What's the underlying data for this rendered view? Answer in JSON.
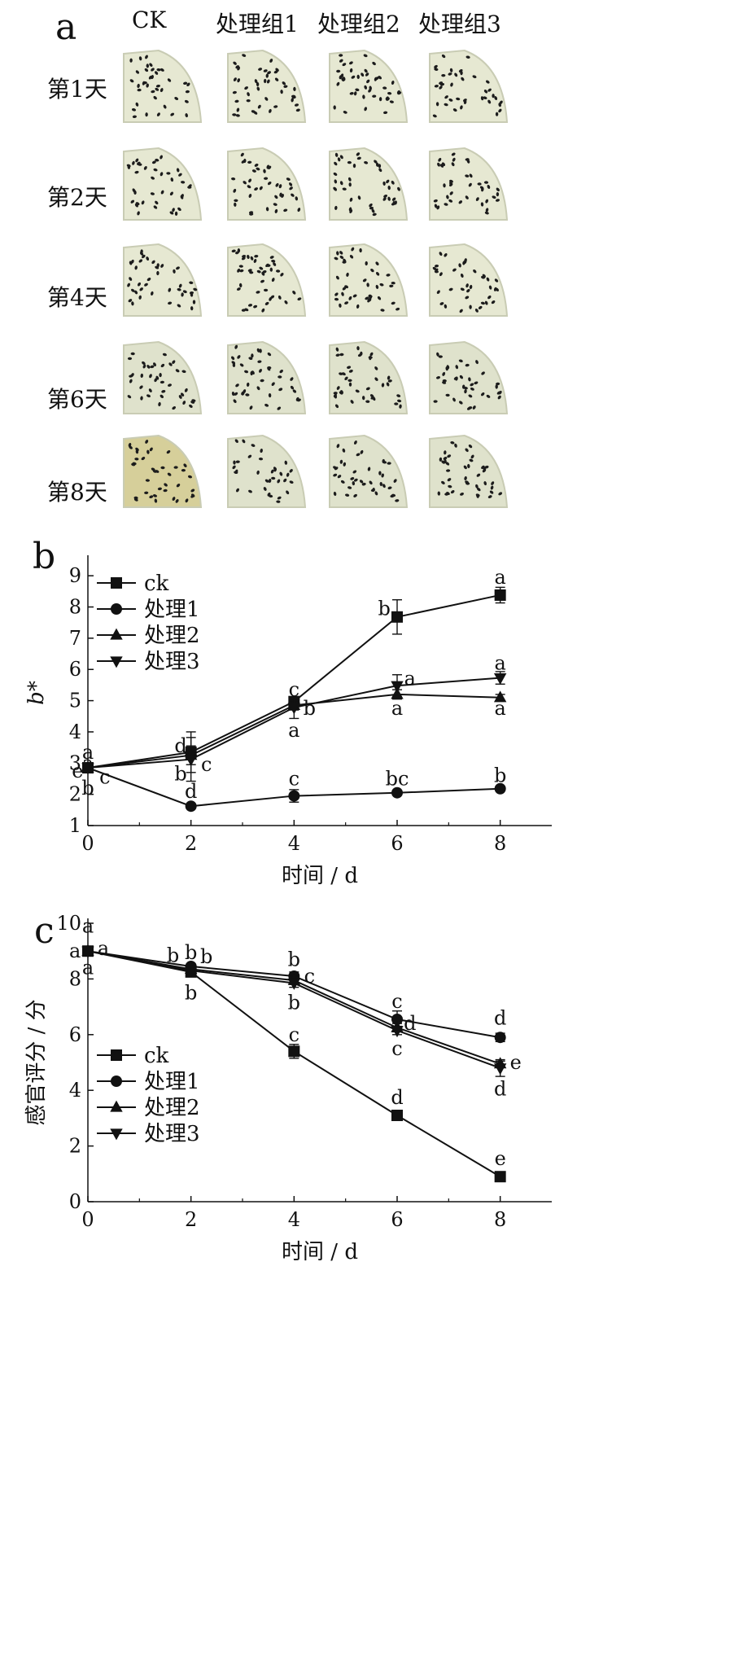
{
  "panel_a": {
    "label": "a",
    "columns": [
      "CK",
      "处理组1",
      "处理组2",
      "处理组3"
    ],
    "rows": [
      "第1天",
      "第2天",
      "第4天",
      "第6天",
      "第8天"
    ]
  },
  "chart_data": [
    {
      "panel": "b",
      "type": "line",
      "xlabel": "时间 / d",
      "ylabel": "b*",
      "x": [
        0,
        2,
        4,
        6,
        8
      ],
      "xlim": [
        0,
        9
      ],
      "ylim": [
        1,
        9.5
      ],
      "xticks": [
        0,
        2,
        4,
        6,
        8
      ],
      "yticks": [
        1,
        2,
        3,
        4,
        5,
        6,
        7,
        8,
        9
      ],
      "legend_position": "top-left",
      "series": [
        {
          "name": "ck",
          "marker": "square",
          "values": [
            2.85,
            3.35,
            4.97,
            7.68,
            8.38
          ],
          "errors": [
            0.1,
            0.65,
            0.15,
            0.55,
            0.25
          ]
        },
        {
          "name": "处理1",
          "marker": "circle",
          "values": [
            2.85,
            1.62,
            1.95,
            2.05,
            2.18
          ],
          "errors": [
            0.1,
            0.05,
            0.2,
            0.05,
            0.07
          ]
        },
        {
          "name": "处理2",
          "marker": "triangle-up",
          "values": [
            2.85,
            3.25,
            4.85,
            5.2,
            5.1
          ],
          "errors": [
            0.1,
            0.3,
            0.15,
            0.15,
            0.1
          ]
        },
        {
          "name": "处理3",
          "marker": "triangle-down",
          "values": [
            2.85,
            3.12,
            4.78,
            5.48,
            5.73
          ],
          "errors": [
            0.1,
            0.7,
            0.35,
            0.35,
            0.2
          ]
        }
      ],
      "annotations": [
        {
          "x": 0,
          "y": 3.35,
          "text": "a"
        },
        {
          "x": 0,
          "y": 3.0,
          "text": "a"
        },
        {
          "x": -0.2,
          "y": 2.75,
          "text": "e"
        },
        {
          "x": 0,
          "y": 2.2,
          "text": "b"
        },
        {
          "x": 0.33,
          "y": 2.55,
          "text": "c"
        },
        {
          "x": 1.8,
          "y": 3.55,
          "text": "d"
        },
        {
          "x": 1.8,
          "y": 2.65,
          "text": "b"
        },
        {
          "x": 2.3,
          "y": 2.95,
          "text": "c"
        },
        {
          "x": 2,
          "y": 2.1,
          "text": "d"
        },
        {
          "x": 4,
          "y": 5.35,
          "text": "c"
        },
        {
          "x": 4.3,
          "y": 4.75,
          "text": "b"
        },
        {
          "x": 4,
          "y": 4.05,
          "text": "a"
        },
        {
          "x": 4,
          "y": 2.5,
          "text": "c"
        },
        {
          "x": 5.75,
          "y": 7.95,
          "text": "b"
        },
        {
          "x": 6.25,
          "y": 5.7,
          "text": "a"
        },
        {
          "x": 6,
          "y": 4.75,
          "text": "a"
        },
        {
          "x": 6,
          "y": 2.5,
          "text": "bc"
        },
        {
          "x": 8,
          "y": 8.95,
          "text": "a"
        },
        {
          "x": 8,
          "y": 6.2,
          "text": "a"
        },
        {
          "x": 8,
          "y": 4.75,
          "text": "a"
        },
        {
          "x": 8,
          "y": 2.6,
          "text": "b"
        }
      ]
    },
    {
      "panel": "c",
      "type": "line",
      "xlabel": "时间 / d",
      "ylabel": "感官评分 / 分",
      "x": [
        0,
        2,
        4,
        6,
        8
      ],
      "xlim": [
        0,
        9
      ],
      "ylim": [
        0,
        10
      ],
      "xticks": [
        0,
        2,
        4,
        6,
        8
      ],
      "yticks": [
        0,
        2,
        4,
        6,
        8,
        10
      ],
      "legend_position": "bottom-left",
      "series": [
        {
          "name": "ck",
          "marker": "square",
          "values": [
            9.0,
            8.25,
            5.4,
            3.1,
            0.9
          ],
          "errors": [
            0.05,
            0.1,
            0.25,
            0.1,
            0.05
          ]
        },
        {
          "name": "处理1",
          "marker": "circle",
          "values": [
            9.0,
            8.45,
            8.1,
            6.55,
            5.9
          ],
          "errors": [
            0.05,
            0.1,
            0.15,
            0.3,
            0.15
          ]
        },
        {
          "name": "处理2",
          "marker": "triangle-up",
          "values": [
            9.0,
            8.35,
            7.95,
            6.25,
            4.95
          ],
          "errors": [
            0.05,
            0.1,
            0.15,
            0.15,
            0.1
          ]
        },
        {
          "name": "处理3",
          "marker": "triangle-down",
          "values": [
            9.0,
            8.3,
            7.85,
            6.15,
            4.8
          ],
          "errors": [
            0.05,
            0.1,
            0.15,
            0.15,
            0.3
          ]
        }
      ],
      "annotations": [
        {
          "x": 0,
          "y": 9.9,
          "text": "a"
        },
        {
          "x": -0.25,
          "y": 9.0,
          "text": "a"
        },
        {
          "x": 0.3,
          "y": 9.1,
          "text": "a"
        },
        {
          "x": 0,
          "y": 8.4,
          "text": "a"
        },
        {
          "x": 1.65,
          "y": 8.85,
          "text": "b"
        },
        {
          "x": 2,
          "y": 8.95,
          "text": "b"
        },
        {
          "x": 2.3,
          "y": 8.8,
          "text": "b"
        },
        {
          "x": 2,
          "y": 7.5,
          "text": "b"
        },
        {
          "x": 4,
          "y": 8.7,
          "text": "b"
        },
        {
          "x": 4.3,
          "y": 8.1,
          "text": "c"
        },
        {
          "x": 4,
          "y": 7.15,
          "text": "b"
        },
        {
          "x": 4,
          "y": 6.0,
          "text": "c"
        },
        {
          "x": 6,
          "y": 7.2,
          "text": "c"
        },
        {
          "x": 6.25,
          "y": 6.4,
          "text": "d"
        },
        {
          "x": 6,
          "y": 5.5,
          "text": "c"
        },
        {
          "x": 6,
          "y": 3.75,
          "text": "d"
        },
        {
          "x": 8,
          "y": 6.6,
          "text": "d"
        },
        {
          "x": 8.3,
          "y": 5.0,
          "text": "e"
        },
        {
          "x": 8,
          "y": 4.05,
          "text": "d"
        },
        {
          "x": 8,
          "y": 1.55,
          "text": "e"
        }
      ]
    }
  ],
  "labels": {
    "b": "b",
    "c": "c"
  },
  "colors": {
    "ink": "#111111",
    "flesh": "#e6e8d2",
    "flesh_shade": "#c9ccb4",
    "seed": "#1c1c1c",
    "aged": "#d6cf9a"
  }
}
